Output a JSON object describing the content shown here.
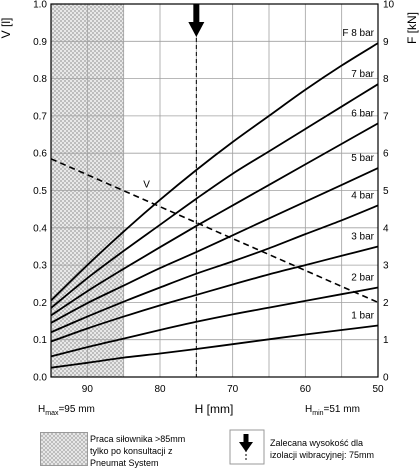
{
  "chart_data": {
    "type": "line",
    "xlabel": "H [mm]",
    "ylabel_left": "V [l]",
    "ylabel_right": "F [kN]",
    "x_range": [
      95,
      50
    ],
    "x_ticks": [
      90,
      80,
      70,
      60,
      50
    ],
    "y_left_range": [
      0,
      1.0
    ],
    "y_left_ticks": [
      "0.0",
      "0.1",
      "0.2",
      "0.3",
      "0.4",
      "0.5",
      "0.6",
      "0.7",
      "0.8",
      "0.9",
      "1.0"
    ],
    "y_right_range": [
      0,
      10
    ],
    "y_right_ticks": [
      "0",
      "1",
      "2",
      "3",
      "4",
      "5",
      "6",
      "7",
      "8",
      "9",
      "10"
    ],
    "grid": true,
    "hatched_region_x": [
      95,
      85
    ],
    "recommended_height_x": 75,
    "force_series": [
      {
        "name": "1 bar",
        "x": [
          95,
          90,
          85,
          80,
          75,
          70,
          65,
          60,
          55,
          50
        ],
        "values": [
          0.25,
          0.38,
          0.52,
          0.63,
          0.75,
          0.88,
          1.01,
          1.14,
          1.26,
          1.38
        ]
      },
      {
        "name": "2 bar",
        "x": [
          95,
          90,
          85,
          80,
          75,
          70,
          65,
          60,
          55,
          50
        ],
        "values": [
          0.55,
          0.8,
          1.03,
          1.26,
          1.48,
          1.68,
          1.86,
          2.04,
          2.22,
          2.4
        ]
      },
      {
        "name": "3 bar",
        "x": [
          95,
          90,
          85,
          80,
          75,
          70,
          65,
          60,
          55,
          50
        ],
        "values": [
          0.95,
          1.3,
          1.62,
          1.92,
          2.2,
          2.48,
          2.75,
          3.0,
          3.25,
          3.5
        ]
      },
      {
        "name": "4 bar",
        "x": [
          95,
          90,
          85,
          80,
          75,
          70,
          65,
          60,
          55,
          50
        ],
        "values": [
          1.2,
          1.62,
          2.02,
          2.4,
          2.77,
          3.1,
          3.45,
          3.83,
          4.2,
          4.6
        ]
      },
      {
        "name": "5 bar",
        "x": [
          95,
          90,
          85,
          80,
          75,
          70,
          65,
          60,
          55,
          50
        ],
        "values": [
          1.45,
          1.98,
          2.45,
          2.92,
          3.35,
          3.8,
          4.25,
          4.7,
          5.15,
          5.6
        ]
      },
      {
        "name": "6 bar",
        "x": [
          95,
          90,
          85,
          80,
          75,
          70,
          65,
          60,
          55,
          50
        ],
        "values": [
          1.65,
          2.3,
          2.9,
          3.48,
          4.05,
          4.6,
          5.15,
          5.7,
          6.25,
          6.8
        ]
      },
      {
        "name": "7 bar",
        "x": [
          95,
          90,
          85,
          80,
          75,
          70,
          65,
          60,
          55,
          50
        ],
        "values": [
          1.85,
          2.65,
          3.38,
          4.08,
          4.78,
          5.45,
          6.05,
          6.65,
          7.25,
          7.85
        ]
      },
      {
        "name": "F 8 bar",
        "x": [
          95,
          90,
          85,
          80,
          75,
          70,
          65,
          60,
          55,
          50
        ],
        "values": [
          2.05,
          3.0,
          3.9,
          4.75,
          5.55,
          6.3,
          7.0,
          7.7,
          8.35,
          8.95
        ]
      }
    ],
    "volume_series": {
      "name": "V",
      "x": [
        95,
        50
      ],
      "values": [
        0.585,
        0.2
      ]
    }
  },
  "labels": {
    "h_max": "H",
    "h_max_sub": "max",
    "h_max_value": "=95 mm",
    "h_min": "H",
    "h_min_sub": "min",
    "h_min_value": "=51 mm"
  },
  "legend": {
    "hatched_line1": "Praca siłownika >85mm",
    "hatched_line2": "tylko po konsultacji z",
    "hatched_line3": "Pneumat System",
    "arrow_line1": "Zalecana wysokość dla",
    "arrow_line2": "izolacji wibracyjnej: 75mm"
  },
  "colors": {
    "curve": "#000000",
    "grid": "#a0a0a0",
    "hatch": "#bdbdbd"
  }
}
